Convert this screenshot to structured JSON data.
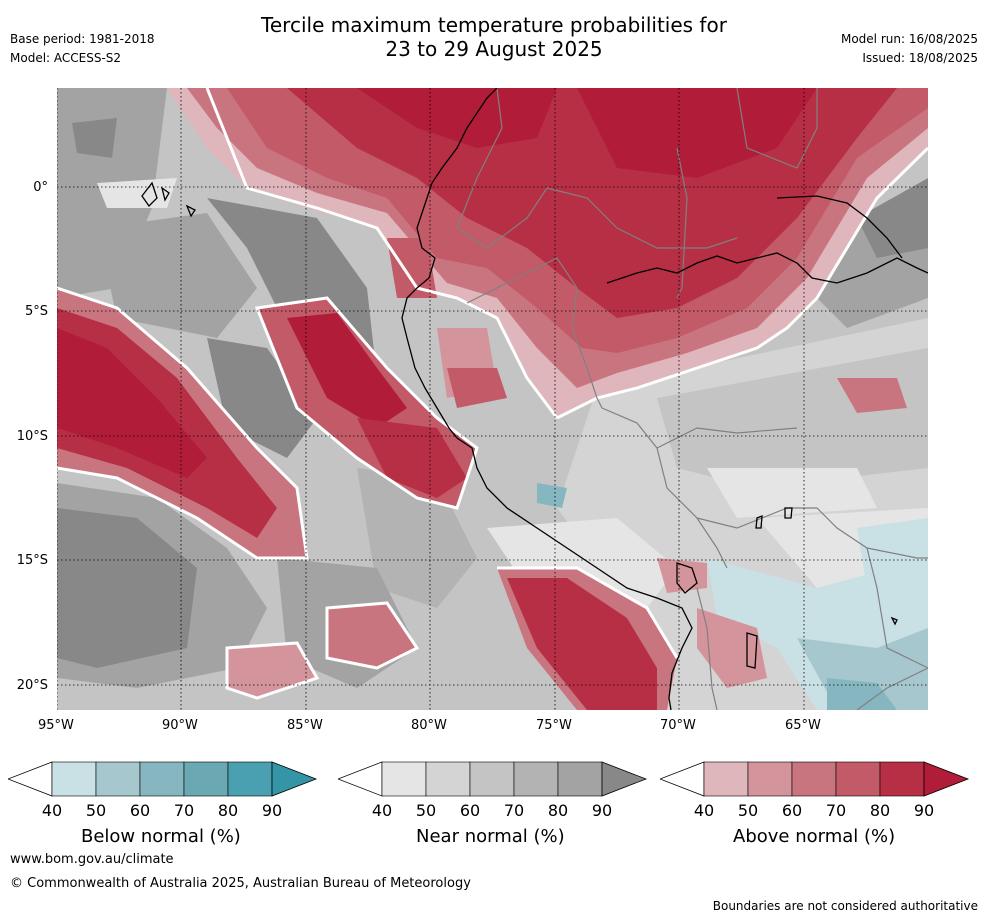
{
  "header": {
    "base_period": "Base period: 1981-2018",
    "model": "Model: ACCESS-S2",
    "title_line1": "Tercile maximum temperature probabilities for",
    "title_line2": "23 to 29 August 2025",
    "model_run": "Model run: 16/08/2025",
    "issued": "Issued: 18/08/2025"
  },
  "axes": {
    "lat_labels": [
      "0°",
      "5°S",
      "10°S",
      "15°S",
      "20°S"
    ],
    "lon_labels": [
      "95°W",
      "90°W",
      "85°W",
      "80°W",
      "75°W",
      "70°W",
      "65°W"
    ]
  },
  "legend": {
    "below": {
      "label": "Below normal (%)",
      "ticks": [
        "40",
        "50",
        "60",
        "70",
        "80",
        "90"
      ],
      "colors": [
        "#c9e0e5",
        "#a5c7cd",
        "#86b6c0",
        "#6aa8b4",
        "#4aa0b0",
        "#3495a6"
      ]
    },
    "near": {
      "label": "Near normal (%)",
      "ticks": [
        "40",
        "50",
        "60",
        "70",
        "80",
        "90"
      ],
      "colors": [
        "#e5e5e5",
        "#d4d4d4",
        "#c4c4c4",
        "#b3b3b3",
        "#a3a3a3",
        "#888888"
      ]
    },
    "above": {
      "label": "Above normal (%)",
      "ticks": [
        "40",
        "50",
        "60",
        "70",
        "80",
        "90"
      ],
      "colors": [
        "#dfb6bb",
        "#d4949c",
        "#c97580",
        "#c25a67",
        "#b72f45",
        "#b11c38"
      ]
    }
  },
  "footer": {
    "website": "www.bom.gov.au/climate",
    "copyright": "© Commonwealth of Australia 2025, Australian Bureau of Meteorology",
    "disclaimer": "Boundaries are not considered authoritative"
  }
}
